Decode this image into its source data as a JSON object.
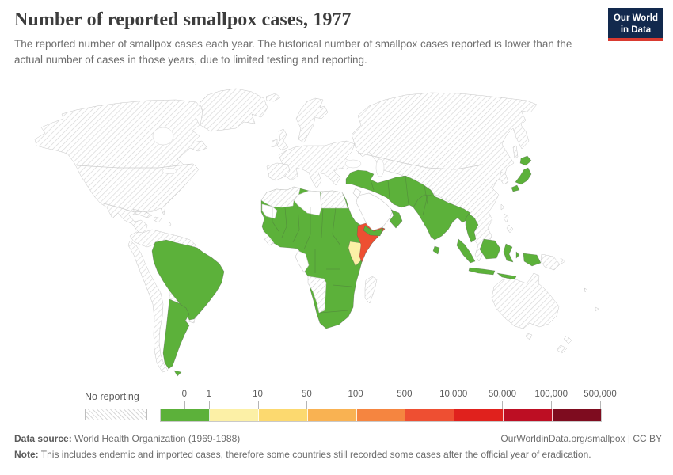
{
  "header": {
    "title": "Number of reported smallpox cases, 1977",
    "subtitle": "The reported number of smallpox cases each year. The historical number of smallpox cases reported is lower than the actual number of cases in those years, due to limited testing and reporting."
  },
  "logo": {
    "line1": "Our World",
    "line2": "in Data",
    "bg_color": "#12294d",
    "accent_color": "#d93a30"
  },
  "legend": {
    "no_reporting_label": "No reporting",
    "tick_labels": [
      "0",
      "1",
      "10",
      "50",
      "100",
      "500",
      "10,000",
      "50,000",
      "100,000",
      "500,000"
    ],
    "bin_colors": [
      "#5cb13a",
      "#fcf0a6",
      "#fcd96f",
      "#f9b252",
      "#f58540",
      "#ee4f32",
      "#e0211d",
      "#bd0e23",
      "#7e0c1f"
    ]
  },
  "footer": {
    "source_label": "Data source:",
    "source_text": " World Health Organization (1969-1988)",
    "link_text": "OurWorldinData.org/smallpox | CC BY",
    "note_label": "Note:",
    "note_text": " This includes endemic and imported cases, therefore some countries still recorded some cases after the official year of eradication."
  },
  "chart_data": {
    "type": "choropleth_map",
    "title": "Number of reported smallpox cases",
    "year": 1977,
    "unit": "reported smallpox cases",
    "legend_bins": [
      {
        "range": "0",
        "color": "#5cb13a"
      },
      {
        "range": "1-10",
        "color": "#fcf0a6"
      },
      {
        "range": "10-50",
        "color": "#fcd96f"
      },
      {
        "range": "50-100",
        "color": "#f9b252"
      },
      {
        "range": "100-500",
        "color": "#f58540"
      },
      {
        "range": "500-10,000",
        "color": "#ee4f32"
      },
      {
        "range": "10,000-50,000",
        "color": "#e0211d"
      },
      {
        "range": "50,000-100,000",
        "color": "#bd0e23"
      },
      {
        "range": "100,000-500,000",
        "color": "#7e0c1f"
      }
    ],
    "no_reporting_style": "hatched",
    "countries": {
      "bin_500_to_10000": [
        "Somalia"
      ],
      "bin_1_to_10": [
        "Kenya"
      ],
      "bin_0": [
        "Brazil",
        "Argentina",
        "Turkey",
        "Syria",
        "Iraq",
        "Iran",
        "Afghanistan",
        "Pakistan",
        "India",
        "Nepal",
        "Bangladesh",
        "Myanmar",
        "Sri Lanka",
        "Japan",
        "Indonesia",
        "Oman",
        "Yemen",
        "Senegal",
        "Guinea",
        "Mali",
        "Niger",
        "Chad",
        "Sudan",
        "Ethiopia",
        "Nigeria",
        "Cameroon",
        "Central African Republic",
        "DR Congo",
        "Uganda",
        "Tanzania",
        "Angola",
        "Zambia",
        "Malawi",
        "Zimbabwe",
        "Mozambique",
        "Botswana",
        "South Africa"
      ],
      "no_reporting": [
        "United States",
        "Canada",
        "Mexico",
        "Greenland",
        "Central America",
        "Cuba",
        "Colombia",
        "Venezuela",
        "Peru",
        "Bolivia",
        "Chile",
        "Paraguay",
        "Uruguay",
        "Europe",
        "Soviet Union",
        "China",
        "Mongolia",
        "South Korea",
        "Philippines",
        "Thailand",
        "Vietnam",
        "Malaysia",
        "Papua New Guinea",
        "Australia",
        "New Zealand",
        "Morocco",
        "Algeria",
        "Tunisia",
        "Egypt",
        "Namibia",
        "Madagascar"
      ]
    }
  }
}
